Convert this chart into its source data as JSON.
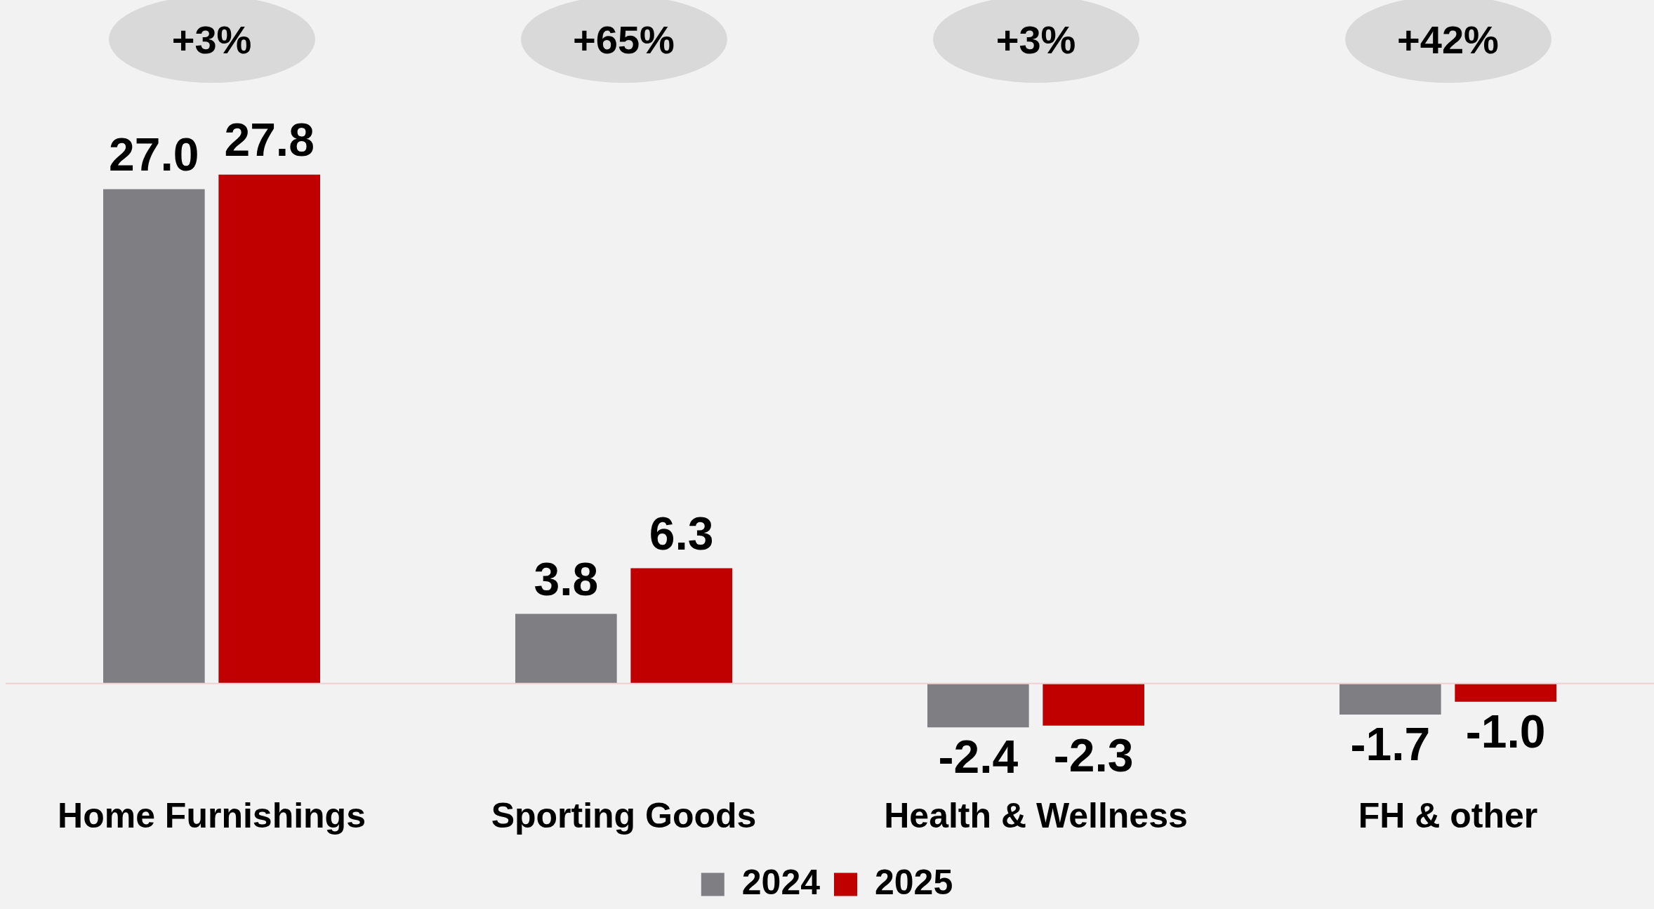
{
  "chart_data": {
    "type": "bar",
    "categories": [
      "Home Furnishings",
      "Sporting Goods",
      "Health & Wellness",
      "FH & other"
    ],
    "series": [
      {
        "name": "2024",
        "color": "#7f7f83",
        "values": [
          27.0,
          3.8,
          -2.4,
          -1.7
        ],
        "value_labels": [
          "27.0",
          "3.8",
          "-2.4",
          "-1.7"
        ]
      },
      {
        "name": "2025",
        "color": "#c00000",
        "values": [
          27.8,
          6.3,
          -2.3,
          -1.0
        ],
        "value_labels": [
          "27.8",
          "6.3",
          "-2.3",
          "-1.0"
        ]
      }
    ],
    "legend": "bottom",
    "grid": false,
    "annotations": [
      "+3%",
      "+65%",
      "+3%",
      "+42%"
    ]
  }
}
